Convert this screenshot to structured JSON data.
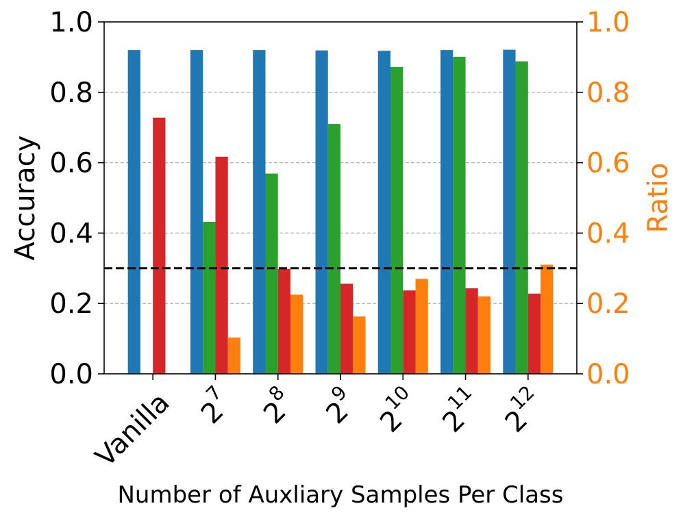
{
  "chart_data": {
    "type": "bar",
    "title": "",
    "xlabel": "Number of Auxliary Samples Per Class",
    "ylabel": "Accuracy",
    "y2label": "Ratio",
    "ylim": [
      0,
      1.0
    ],
    "y2lim": [
      0,
      1.0
    ],
    "yticks": [
      "0.0",
      "0.2",
      "0.4",
      "0.6",
      "0.8",
      "1.0"
    ],
    "y2ticks": [
      "0.0",
      "0.2",
      "0.4",
      "0.6",
      "0.8",
      "1.0"
    ],
    "grid": "horizontal dashed",
    "categories": [
      {
        "label": "Vanilla",
        "base": "",
        "exp": ""
      },
      {
        "label": "2^7",
        "base": "2",
        "exp": "7"
      },
      {
        "label": "2^8",
        "base": "2",
        "exp": "8"
      },
      {
        "label": "2^9",
        "base": "2",
        "exp": "9"
      },
      {
        "label": "2^10",
        "base": "2",
        "exp": "10"
      },
      {
        "label": "2^11",
        "base": "2",
        "exp": "11"
      },
      {
        "label": "2^12",
        "base": "2",
        "exp": "12"
      }
    ],
    "series": [
      {
        "name": "series-blue",
        "axis": "left",
        "color": "#1f77b4",
        "values": [
          0.92,
          0.92,
          0.92,
          0.919,
          0.918,
          0.92,
          0.921
        ]
      },
      {
        "name": "series-green",
        "axis": "left",
        "color": "#2ca02c",
        "values": [
          null,
          0.432,
          0.569,
          0.71,
          0.872,
          0.901,
          0.888
        ]
      },
      {
        "name": "series-red",
        "axis": "left",
        "color": "#d62728",
        "values": [
          0.728,
          0.617,
          0.298,
          0.256,
          0.237,
          0.243,
          0.228
        ]
      },
      {
        "name": "series-orange",
        "axis": "right",
        "color": "#ff7f0e",
        "values": [
          null,
          0.103,
          0.225,
          0.163,
          0.27,
          0.22,
          0.31
        ]
      }
    ],
    "reference_line": {
      "value": 0.3,
      "style": "dashed",
      "color": "#000000"
    },
    "colors": {
      "left_axis": "#000000",
      "right_axis": "#ff7f0e",
      "grid": "#b0b0b0"
    }
  }
}
